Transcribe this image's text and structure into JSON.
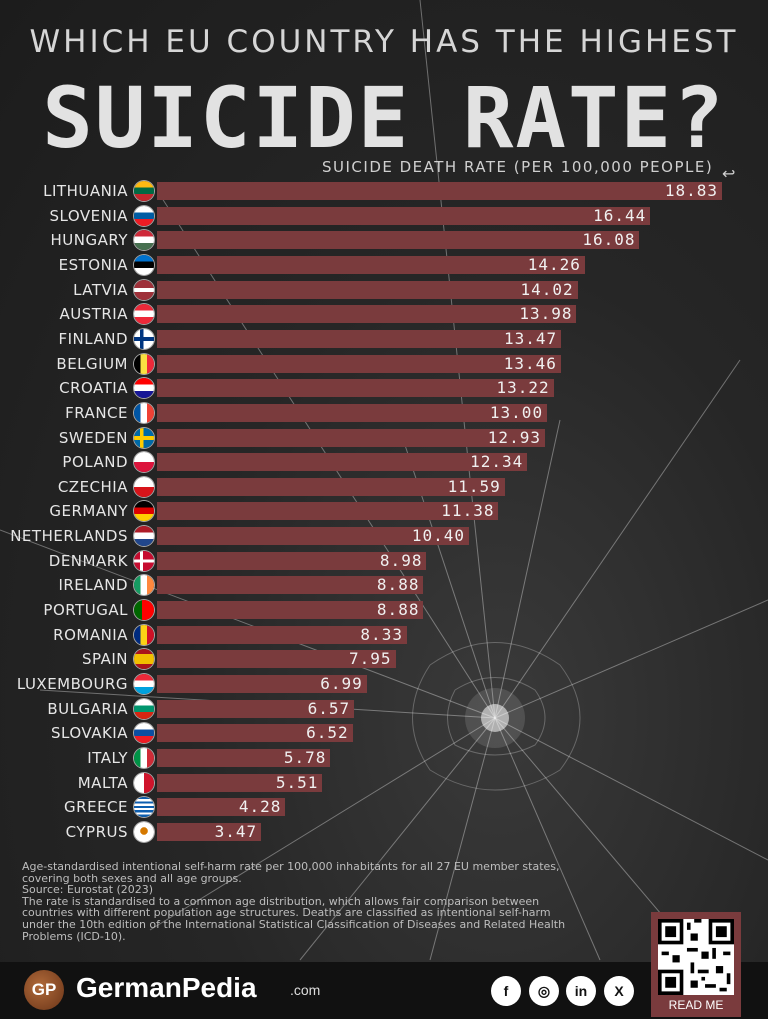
{
  "header": {
    "line1": "WHICH EU COUNTRY HAS THE HIGHEST",
    "line2": "SUICIDE RATE?",
    "subtitle": "SUICIDE DEATH RATE (PER 100,000 PEOPLE)"
  },
  "colors": {
    "bar": "#7a3b3d",
    "background": "#262626"
  },
  "chart_data": {
    "type": "bar",
    "orientation": "horizontal",
    "title": "SUICIDE RATE?",
    "xlabel": "SUICIDE DEATH RATE (PER 100,000 PEOPLE)",
    "categories": [
      "LITHUANIA",
      "SLOVENIA",
      "HUNGARY",
      "ESTONIA",
      "LATVIA",
      "AUSTRIA",
      "FINLAND",
      "BELGIUM",
      "CROATIA",
      "FRANCE",
      "SWEDEN",
      "POLAND",
      "CZECHIA",
      "GERMANY",
      "NETHERLANDS",
      "DENMARK",
      "IRELAND",
      "PORTUGAL",
      "ROMANIA",
      "SPAIN",
      "LUXEMBOURG",
      "BULGARIA",
      "SLOVAKIA",
      "ITALY",
      "MALTA",
      "GREECE",
      "CYPRUS"
    ],
    "values": [
      18.83,
      16.44,
      16.08,
      14.26,
      14.02,
      13.98,
      13.47,
      13.46,
      13.22,
      13.0,
      12.93,
      12.34,
      11.59,
      11.38,
      10.4,
      8.98,
      8.88,
      8.88,
      8.33,
      7.95,
      6.99,
      6.57,
      6.52,
      5.78,
      5.51,
      4.28,
      3.47
    ],
    "labels": [
      "18.83",
      "16.44",
      "16.08",
      "14.26",
      "14.02",
      "13.98",
      "13.47",
      "13.46",
      "13.22",
      "13.00",
      "12.93",
      "12.34",
      "11.59",
      "11.38",
      "10.40",
      "8.98",
      "8.88",
      "8.88",
      "8.33",
      "7.95",
      "6.99",
      "6.57",
      "6.52",
      "5.78",
      "5.51",
      "4.28",
      "3.47"
    ],
    "flags": [
      "lithuania-flag-icon",
      "slovenia-flag-icon",
      "hungary-flag-icon",
      "estonia-flag-icon",
      "latvia-flag-icon",
      "austria-flag-icon",
      "finland-flag-icon",
      "belgium-flag-icon",
      "croatia-flag-icon",
      "france-flag-icon",
      "sweden-flag-icon",
      "poland-flag-icon",
      "czechia-flag-icon",
      "germany-flag-icon",
      "netherlands-flag-icon",
      "denmark-flag-icon",
      "ireland-flag-icon",
      "portugal-flag-icon",
      "romania-flag-icon",
      "spain-flag-icon",
      "luxembourg-flag-icon",
      "bulgaria-flag-icon",
      "slovakia-flag-icon",
      "italy-flag-icon",
      "malta-flag-icon",
      "greece-flag-icon",
      "cyprus-flag-icon"
    ],
    "grid": false,
    "legend": "none"
  },
  "notes": {
    "line1": "Age-standardised intentional self-harm rate per 100,000 inhabitants for all 27 EU member states,",
    "line2": "covering both sexes and all age groups.",
    "line3": "Source: Eurostat (2023)",
    "line4": "The rate is standardised to a common age distribution, which allows fair comparison between",
    "line5": "countries with different population age structures. Deaths are classified as intentional self-harm",
    "line6": "under the 10th edition of the International Statistical Classification of Diseases and Related Health",
    "line7": "Problems (ICD-10)."
  },
  "footer": {
    "logo_initials": "GP",
    "brand": "GermanPedia",
    "brand_suffix": ".com",
    "social": [
      "facebook-icon",
      "instagram-icon",
      "linkedin-icon",
      "x-icon"
    ],
    "read_me": "READ ME"
  }
}
